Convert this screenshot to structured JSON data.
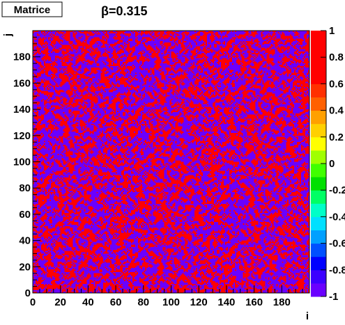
{
  "chart_data": {
    "type": "heatmap",
    "name_box": "Matrice",
    "title": "β=0.315",
    "xlabel": "i",
    "ylabel": "j",
    "xlim": [
      0,
      200
    ],
    "ylim": [
      0,
      200
    ],
    "x_ticks": [
      0,
      20,
      40,
      60,
      80,
      100,
      120,
      140,
      160,
      180
    ],
    "y_ticks": [
      0,
      20,
      40,
      60,
      80,
      100,
      120,
      140,
      160,
      180
    ],
    "grid": false,
    "lattice_size": 200,
    "values": [
      -1,
      1
    ],
    "value_colors": {
      "-1": "#6a00ff",
      "1": "#ff0000"
    },
    "cell_pattern": "noisy random mixture of −1 and +1 spins with small clusters",
    "colorbar": {
      "zlim": [
        -1,
        1
      ],
      "tick_labels": [
        "1",
        "0.8",
        "0.6",
        "0.4",
        "0.2",
        "0",
        "-0.2",
        "-0.4",
        "-0.6",
        "-0.8",
        "-1"
      ],
      "tick_values": [
        1,
        0.8,
        0.6,
        0.4,
        0.2,
        0,
        -0.2,
        -0.4,
        -0.6,
        -0.8,
        -1
      ],
      "colors": [
        "#6a00ff",
        "#3c00ff",
        "#0000ff",
        "#0050ff",
        "#00a0ff",
        "#00e0ff",
        "#00ffc8",
        "#00ff64",
        "#00e000",
        "#40ff00",
        "#a0ff00",
        "#ffff00",
        "#ffd000",
        "#ffa000",
        "#ff6000",
        "#ff3000",
        "#ff0000",
        "#ff0000",
        "#ff0000",
        "#ff0000"
      ]
    }
  }
}
